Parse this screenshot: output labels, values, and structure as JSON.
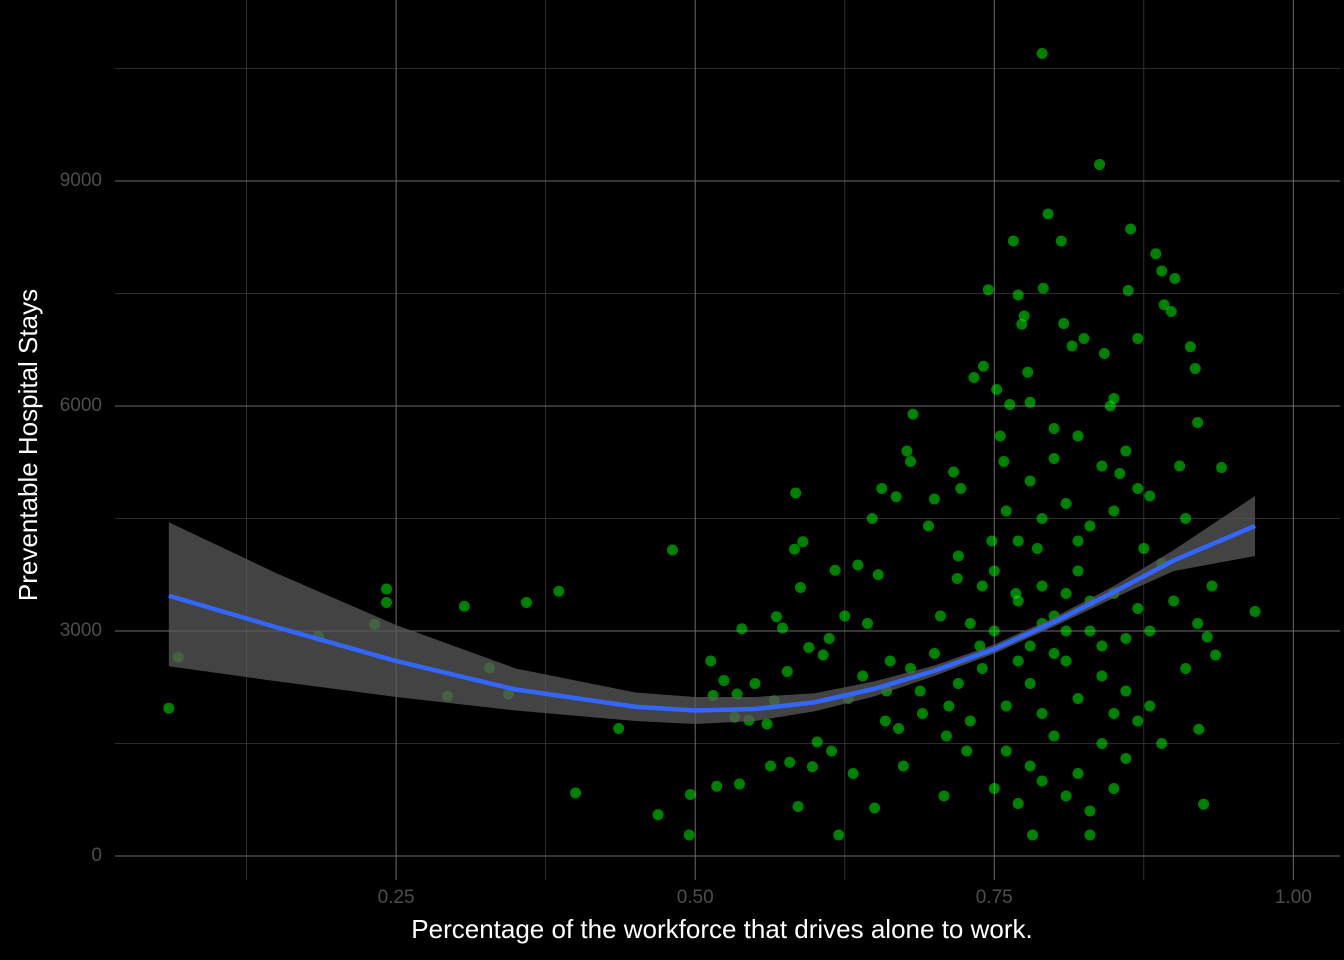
{
  "chart_data": {
    "type": "scatter",
    "xlabel": "Percentage of the workforce that drives alone to work.",
    "ylabel": "Preventable Hospital Stays",
    "xlim": [
      0.015,
      1.039
    ],
    "ylim": [
      -320,
      11413
    ],
    "xticks": [
      {
        "value": 0.25,
        "label": "0.25"
      },
      {
        "value": 0.5,
        "label": "0.50"
      },
      {
        "value": 0.75,
        "label": "0.75"
      },
      {
        "value": 1,
        "label": "1.00"
      }
    ],
    "yticks": [
      0,
      3000,
      6000,
      9000
    ],
    "x_minor_grid": [
      0.125,
      0.375,
      0.625,
      0.875
    ],
    "y_minor_grid": [
      1500,
      4500,
      7500,
      10500
    ],
    "grid": true,
    "points": {
      "color": "#00ff00",
      "x": [
        0.06,
        0.068,
        0.185,
        0.232,
        0.242,
        0.242,
        0.307,
        0.293,
        0.328,
        0.344,
        0.359,
        0.386,
        0.4,
        0.436,
        0.469,
        0.481,
        0.495,
        0.496,
        0.513,
        0.515,
        0.518,
        0.524,
        0.533,
        0.535,
        0.537,
        0.539,
        0.545,
        0.55,
        0.56,
        0.563,
        0.566,
        0.568,
        0.573,
        0.577,
        0.579,
        0.584,
        0.583,
        0.586,
        0.59,
        0.588,
        0.595,
        0.598,
        0.602,
        0.607,
        0.612,
        0.614,
        0.617,
        0.62,
        0.625,
        0.628,
        0.632,
        0.636,
        0.64,
        0.644,
        0.648,
        0.65,
        0.653,
        0.656,
        0.659,
        0.663,
        0.668,
        0.674,
        0.677,
        0.68,
        0.682,
        0.688,
        0.695,
        0.7,
        0.705,
        0.708,
        0.712,
        0.716,
        0.719,
        0.722,
        0.727,
        0.733,
        0.738,
        0.741,
        0.745,
        0.748,
        0.752,
        0.755,
        0.758,
        0.763,
        0.766,
        0.768,
        0.77,
        0.773,
        0.775,
        0.778,
        0.78,
        0.782,
        0.786,
        0.79,
        0.791,
        0.795,
        0.8,
        0.806,
        0.808,
        0.815,
        0.82,
        0.825,
        0.83,
        0.838,
        0.842,
        0.847,
        0.85,
        0.855,
        0.862,
        0.864,
        0.87,
        0.875,
        0.88,
        0.885,
        0.89,
        0.892,
        0.898,
        0.901,
        0.905,
        0.91,
        0.914,
        0.918,
        0.92,
        0.921,
        0.925,
        0.928,
        0.932,
        0.935,
        0.94,
        0.968,
        0.74,
        0.75,
        0.76,
        0.77,
        0.78,
        0.79,
        0.8,
        0.81,
        0.82,
        0.83,
        0.84,
        0.85,
        0.86,
        0.87,
        0.76,
        0.78,
        0.8,
        0.82,
        0.84,
        0.86,
        0.77,
        0.79,
        0.81,
        0.83,
        0.85,
        0.87,
        0.73,
        0.72,
        0.71,
        0.7,
        0.69,
        0.68,
        0.67,
        0.66,
        0.75,
        0.77,
        0.79,
        0.81,
        0.83,
        0.85,
        0.88,
        0.89,
        0.9,
        0.91,
        0.92,
        0.78,
        0.8,
        0.82,
        0.84,
        0.86,
        0.88,
        0.74,
        0.73,
        0.72,
        0.76,
        0.87,
        0.86,
        0.89,
        0.78,
        0.8,
        0.82,
        0.79,
        0.81,
        0.83,
        0.77,
        0.84,
        0.85,
        0.75,
        0.79,
        0.81
      ],
      "y": [
        1970,
        2650,
        2930,
        3090,
        3560,
        3380,
        3330,
        2130,
        2510,
        2160,
        3380,
        3530,
        840,
        1700,
        550,
        4080,
        280,
        820,
        2600,
        2140,
        930,
        2340,
        1850,
        2160,
        960,
        3030,
        1810,
        2300,
        1760,
        1200,
        2070,
        3190,
        3040,
        2460,
        1250,
        4840,
        4090,
        660,
        4190,
        3580,
        2780,
        1190,
        1520,
        2680,
        2900,
        1400,
        3810,
        280,
        3200,
        2100,
        1100,
        3880,
        2400,
        3100,
        4500,
        640,
        3750,
        4900,
        1800,
        2600,
        4790,
        1200,
        5400,
        5260,
        5890,
        2200,
        4400,
        4760,
        3200,
        800,
        2000,
        5120,
        3700,
        4900,
        1400,
        6380,
        2800,
        6530,
        7550,
        4200,
        6220,
        5600,
        5260,
        6020,
        8200,
        3500,
        7480,
        7090,
        7200,
        6450,
        6050,
        280,
        4100,
        10700,
        7570,
        8560,
        5700,
        8200,
        7100,
        6800,
        4200,
        6900,
        280,
        9220,
        6700,
        6000,
        6100,
        5100,
        7540,
        8360,
        6900,
        4100,
        3000,
        8030,
        7800,
        7350,
        7260,
        7700,
        5200,
        4500,
        6790,
        6500,
        5780,
        1690,
        690,
        2920,
        3600,
        2680,
        5180,
        3260,
        2500,
        3000,
        2000,
        3400,
        2800,
        3600,
        3200,
        2600,
        3800,
        3000,
        2400,
        3500,
        2900,
        3300,
        1400,
        1200,
        1600,
        1100,
        1500,
        1300,
        4200,
        4500,
        4700,
        4400,
        4600,
        4900,
        1800,
        2300,
        1600,
        2700,
        1900,
        2500,
        1700,
        2200,
        900,
        700,
        1000,
        800,
        600,
        900,
        2000,
        3900,
        3400,
        2500,
        3100,
        5000,
        5300,
        5600,
        5200,
        5400,
        4800,
        3600,
        3100,
        4000,
        4600,
        1800,
        2200,
        1500,
        2300,
        2700,
        2100,
        1900,
        3000,
        3400,
        2600,
        2800,
        1900,
        3800,
        3100,
        3500
      ]
    },
    "smooth": {
      "color": "#3366ff",
      "band_color": "#595959",
      "x": [
        0.06,
        0.15,
        0.25,
        0.35,
        0.45,
        0.5,
        0.55,
        0.6,
        0.65,
        0.7,
        0.75,
        0.8,
        0.85,
        0.9,
        0.968
      ],
      "y": [
        3470,
        3050,
        2600,
        2220,
        1990,
        1940,
        1960,
        2050,
        2230,
        2470,
        2760,
        3120,
        3520,
        3940,
        4400
      ],
      "lower": [
        2530,
        2330,
        2120,
        1940,
        1800,
        1760,
        1800,
        1930,
        2130,
        2400,
        2700,
        3060,
        3440,
        3800,
        4000
      ],
      "upper": [
        4450,
        3770,
        3080,
        2500,
        2180,
        2120,
        2120,
        2170,
        2330,
        2540,
        2820,
        3180,
        3600,
        4080,
        4800
      ]
    }
  }
}
